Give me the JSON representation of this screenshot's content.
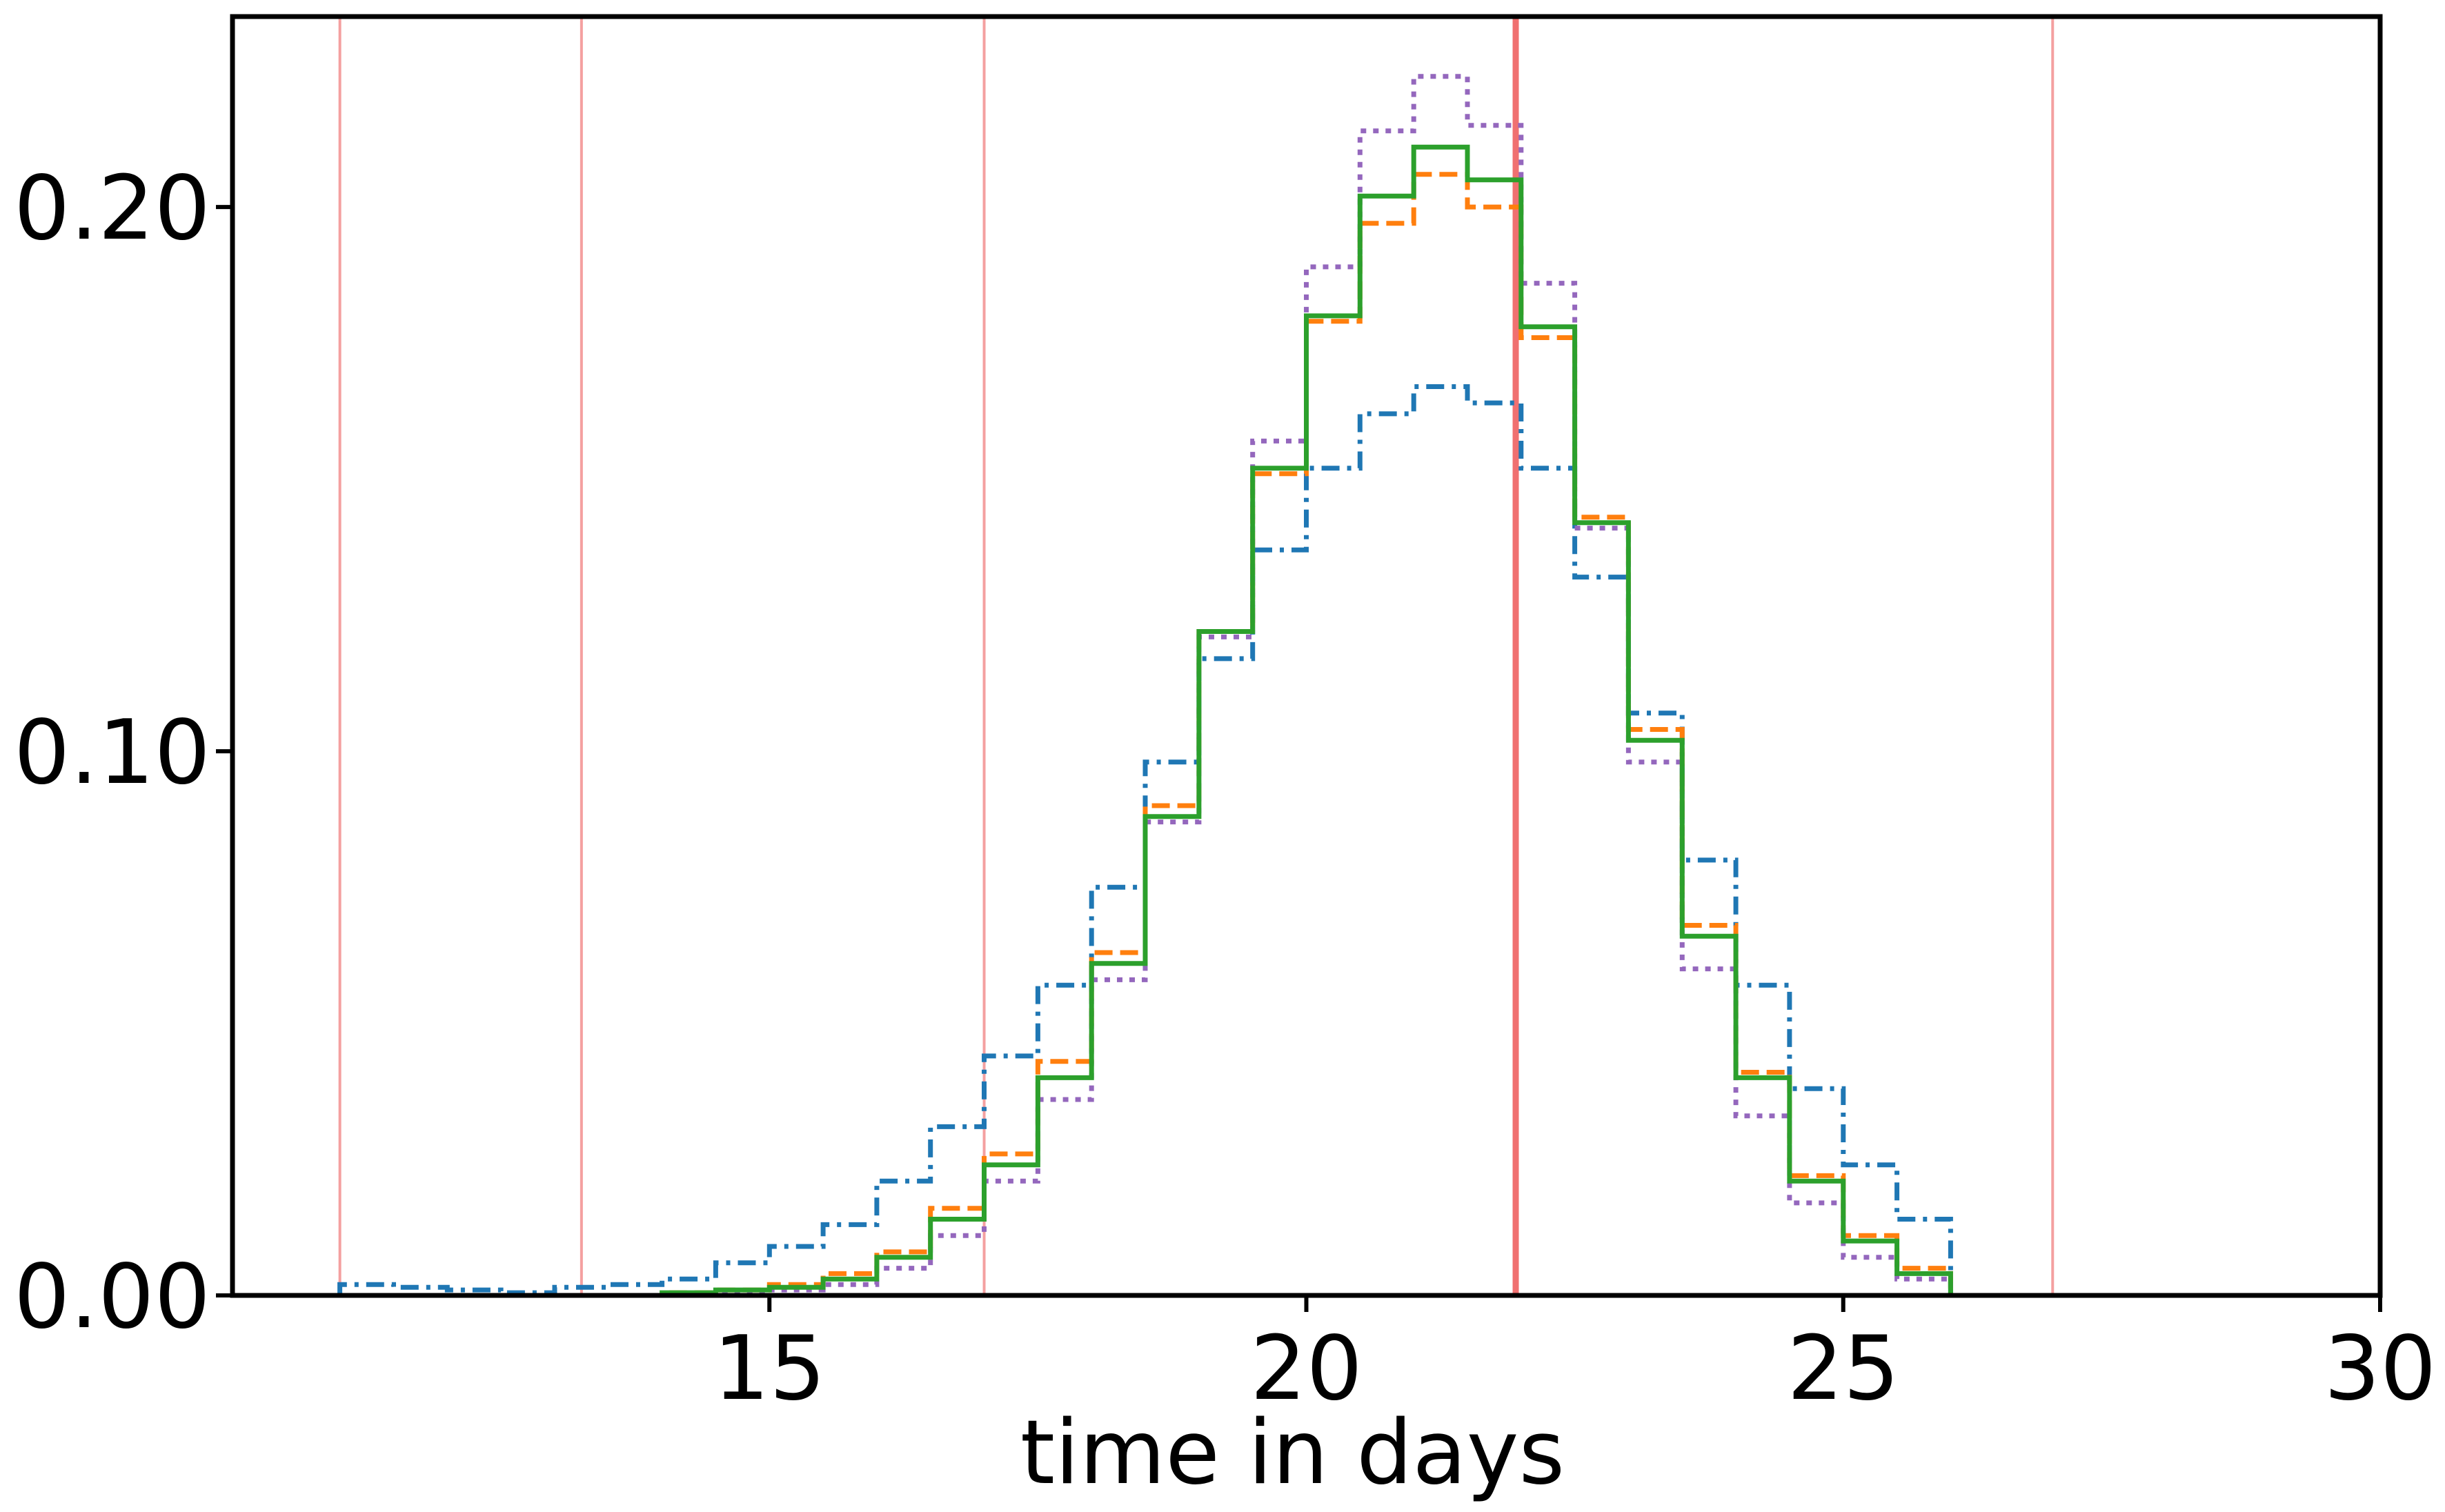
{
  "chart_data": {
    "type": "line",
    "title": "",
    "xlabel": "time in days",
    "ylabel": "",
    "xlim": [
      10,
      30
    ],
    "ylim": [
      0,
      0.235
    ],
    "xticks": [
      15,
      20,
      25,
      30
    ],
    "xtick_labels": [
      "15",
      "20",
      "25",
      "30"
    ],
    "yticks": [
      0.0,
      0.1,
      0.2
    ],
    "ytick_labels": [
      "0.00",
      "0.10",
      "0.20"
    ],
    "grid": false,
    "legend": null,
    "vertical_lines": [
      {
        "x": 11.0,
        "color": "#f4a0a0",
        "emphasis": "thin"
      },
      {
        "x": 13.25,
        "color": "#f4a0a0",
        "emphasis": "thin"
      },
      {
        "x": 17.0,
        "color": "#f4a0a0",
        "emphasis": "thin"
      },
      {
        "x": 21.95,
        "color": "#f07070",
        "emphasis": "thick"
      },
      {
        "x": 26.95,
        "color": "#f4a0a0",
        "emphasis": "thin"
      }
    ],
    "bin_edges": [
      11.0,
      11.5,
      12.0,
      12.5,
      13.0,
      13.5,
      14.0,
      14.5,
      15.0,
      15.5,
      16.0,
      16.5,
      17.0,
      17.5,
      18.0,
      18.5,
      19.0,
      19.5,
      20.0,
      20.5,
      21.0,
      21.5,
      22.0,
      22.5,
      23.0,
      23.5,
      24.0,
      24.5,
      25.0,
      25.5,
      26.0,
      26.5,
      27.0
    ],
    "series": [
      {
        "style": "dashdot",
        "color": "#1f77b4",
        "values": [
          0.002,
          0.0015,
          0.001,
          0.0005,
          0.0015,
          0.002,
          0.003,
          0.006,
          0.009,
          0.013,
          0.021,
          0.031,
          0.044,
          0.057,
          0.075,
          0.098,
          0.117,
          0.137,
          0.152,
          0.162,
          0.167,
          0.164,
          0.152,
          0.132,
          0.107,
          0.08,
          0.057,
          0.038,
          0.024,
          0.014,
          0.0,
          0.0
        ]
      },
      {
        "style": "dashed",
        "color": "#ff7f0e",
        "values": [
          0.0,
          0.0,
          0.0,
          0.0,
          0.0,
          0.0,
          0.0005,
          0.001,
          0.002,
          0.004,
          0.008,
          0.016,
          0.026,
          0.043,
          0.063,
          0.09,
          0.122,
          0.151,
          0.179,
          0.197,
          0.206,
          0.2,
          0.176,
          0.143,
          0.104,
          0.068,
          0.041,
          0.022,
          0.011,
          0.005,
          0.0,
          0.0
        ]
      },
      {
        "style": "dotted",
        "color": "#9467bd",
        "values": [
          0.0,
          0.0,
          0.0,
          0.0,
          0.0,
          0.0,
          0.0,
          0.0005,
          0.001,
          0.002,
          0.005,
          0.011,
          0.021,
          0.036,
          0.058,
          0.087,
          0.121,
          0.157,
          0.189,
          0.214,
          0.224,
          0.215,
          0.186,
          0.141,
          0.098,
          0.06,
          0.033,
          0.017,
          0.007,
          0.003,
          0.0,
          0.0
        ]
      },
      {
        "style": "solid",
        "color": "#2ca02c",
        "values": [
          0.0,
          0.0,
          0.0,
          0.0,
          0.0,
          0.0,
          0.0005,
          0.001,
          0.0015,
          0.003,
          0.007,
          0.014,
          0.024,
          0.04,
          0.061,
          0.088,
          0.122,
          0.152,
          0.18,
          0.202,
          0.211,
          0.205,
          0.178,
          0.142,
          0.102,
          0.066,
          0.04,
          0.021,
          0.01,
          0.004,
          0.0,
          0.0
        ]
      }
    ]
  }
}
